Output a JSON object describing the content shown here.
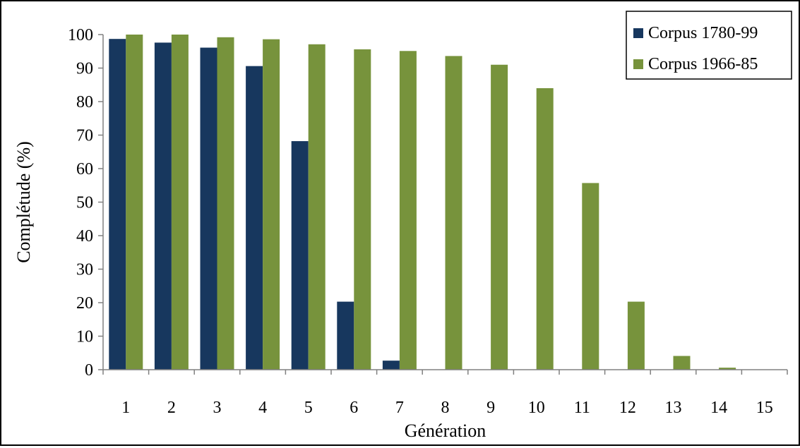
{
  "chart_data": {
    "type": "bar",
    "title": "",
    "xlabel": "Génération",
    "ylabel": "Complétude (%)",
    "ylim": [
      0,
      100
    ],
    "yticks": [
      0,
      10,
      20,
      30,
      40,
      50,
      60,
      70,
      80,
      90,
      100
    ],
    "categories": [
      "1",
      "2",
      "3",
      "4",
      "5",
      "6",
      "7",
      "8",
      "9",
      "10",
      "11",
      "12",
      "13",
      "14",
      "15"
    ],
    "series": [
      {
        "name": "Corpus 1780-99",
        "color": "#17375e",
        "values": [
          98.7,
          97.6,
          96.1,
          90.6,
          68.2,
          20.3,
          2.7,
          0,
          0,
          0,
          0,
          0,
          0,
          0,
          0
        ]
      },
      {
        "name": "Corpus 1966-85",
        "color": "#77933c",
        "values": [
          100,
          100,
          99.2,
          98.6,
          97.1,
          95.6,
          95.1,
          93.6,
          91.0,
          84.0,
          55.7,
          20.3,
          4.1,
          0.6,
          0.1
        ]
      }
    ],
    "grid": false,
    "legend": "top-right"
  }
}
